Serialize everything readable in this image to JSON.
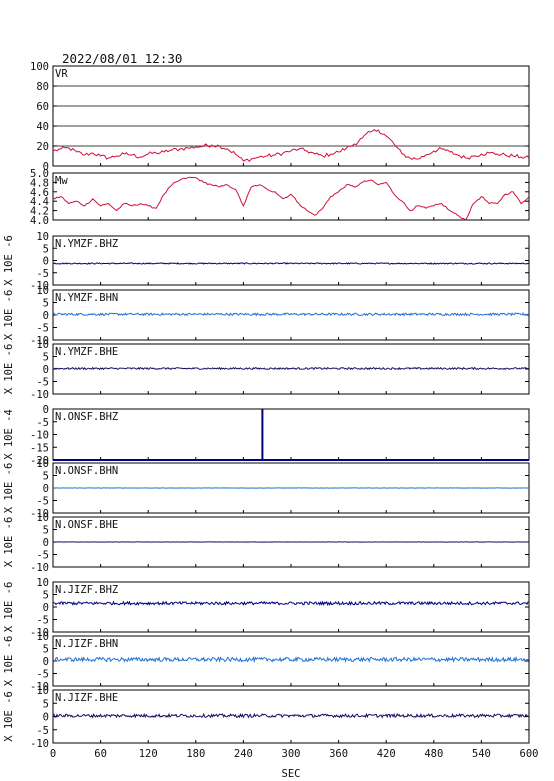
{
  "header": {
    "datetime": "2022/08/01 12:30"
  },
  "xaxis": {
    "label": "SEC",
    "min": 0,
    "max": 600,
    "ticks": [
      "0",
      "60",
      "120",
      "180",
      "240",
      "300",
      "360",
      "420",
      "480",
      "540",
      "600"
    ]
  },
  "colors": {
    "vr": "#d0103a",
    "mw": "#d0103a",
    "navy": "#000080",
    "lightblue": "#2070d0",
    "darknavy": "#101060",
    "frame": "#000000"
  },
  "ylabel_seismic_6": "X 10E -6",
  "ylabel_seismic_4": "X 10E -4",
  "chart_data": [
    {
      "type": "line",
      "label": "VR",
      "ylim": [
        0,
        100
      ],
      "color_key": "vr",
      "grid": true,
      "ticks": [
        "100",
        "80",
        "60",
        "40",
        "20",
        "0"
      ],
      "x": [
        0,
        10,
        20,
        30,
        40,
        50,
        60,
        70,
        80,
        90,
        100,
        110,
        120,
        130,
        140,
        150,
        160,
        170,
        180,
        190,
        200,
        210,
        220,
        230,
        240,
        250,
        260,
        270,
        280,
        290,
        300,
        310,
        320,
        330,
        340,
        350,
        360,
        370,
        380,
        390,
        400,
        410,
        420,
        430,
        440,
        450,
        460,
        470,
        480,
        490,
        500,
        510,
        520,
        530,
        540,
        550,
        560,
        570,
        580,
        590,
        600
      ],
      "y": [
        15,
        17,
        18,
        14,
        11,
        13,
        10,
        8,
        10,
        12,
        11,
        9,
        12,
        13,
        14,
        16,
        17,
        18,
        19,
        20,
        21,
        20,
        17,
        12,
        5,
        7,
        9,
        10,
        11,
        13,
        15,
        17,
        15,
        12,
        10,
        12,
        14,
        18,
        22,
        28,
        34,
        36,
        30,
        22,
        12,
        8,
        7,
        11,
        15,
        17,
        14,
        11,
        8,
        10,
        12,
        13,
        12,
        11,
        10,
        9,
        8
      ]
    },
    {
      "type": "line",
      "label": "Mw",
      "ylim": [
        4.0,
        5.0
      ],
      "color_key": "mw",
      "grid": false,
      "ticks": [
        "5.0",
        "4.8",
        "4.6",
        "4.4",
        "4.2",
        "4.0"
      ],
      "x": [
        0,
        10,
        20,
        30,
        40,
        50,
        60,
        70,
        80,
        90,
        100,
        110,
        120,
        130,
        140,
        150,
        160,
        170,
        180,
        190,
        200,
        210,
        220,
        230,
        240,
        250,
        260,
        270,
        280,
        290,
        300,
        310,
        320,
        330,
        340,
        350,
        360,
        370,
        380,
        390,
        400,
        410,
        420,
        430,
        440,
        450,
        460,
        470,
        480,
        490,
        500,
        510,
        520,
        530,
        540,
        550,
        560,
        570,
        580,
        590,
        600
      ],
      "y": [
        4.45,
        4.5,
        4.35,
        4.4,
        4.3,
        4.45,
        4.3,
        4.35,
        4.2,
        4.35,
        4.3,
        4.35,
        4.3,
        4.25,
        4.55,
        4.75,
        4.85,
        4.9,
        4.9,
        4.8,
        4.75,
        4.7,
        4.75,
        4.65,
        4.3,
        4.7,
        4.75,
        4.65,
        4.6,
        4.45,
        4.55,
        4.35,
        4.2,
        4.1,
        4.25,
        4.5,
        4.6,
        4.75,
        4.7,
        4.8,
        4.85,
        4.75,
        4.8,
        4.55,
        4.4,
        4.2,
        4.3,
        4.25,
        4.3,
        4.35,
        4.2,
        4.1,
        4.0,
        4.35,
        4.5,
        4.35,
        4.35,
        4.55,
        4.6,
        4.35,
        4.5
      ]
    },
    {
      "type": "line",
      "label": "N.YMZF.BHZ",
      "ylim": [
        -10,
        10
      ],
      "color_key": "navy",
      "ticks": [
        "10",
        "5",
        "0",
        "-5",
        "-10"
      ],
      "ylabel_key": "ylabel_seismic_6",
      "x": [
        0,
        600
      ],
      "y": [
        -1.2,
        -1.2
      ],
      "noise": 0.25
    },
    {
      "type": "line",
      "label": "N.YMZF.BHN",
      "ylim": [
        -10,
        10
      ],
      "color_key": "lightblue",
      "ticks": [
        "10",
        "5",
        "0",
        "-5",
        "-10"
      ],
      "ylabel_key": "ylabel_seismic_6",
      "x": [
        0,
        600
      ],
      "y": [
        0.3,
        0.3
      ],
      "noise": 0.45
    },
    {
      "type": "line",
      "label": "N.YMZF.BHE",
      "ylim": [
        -10,
        10
      ],
      "color_key": "darknavy",
      "ticks": [
        "10",
        "5",
        "0",
        "-5",
        "-10"
      ],
      "ylabel_key": "ylabel_seismic_6",
      "x": [
        0,
        600
      ],
      "y": [
        0.2,
        0.2
      ],
      "noise": 0.35
    },
    {
      "type": "line",
      "label": "N.ONSF.BHZ",
      "ylim": [
        -20,
        0
      ],
      "color_key": "navy",
      "ticks": [
        "0",
        "-5",
        "-10",
        "-15",
        "-20"
      ],
      "ylabel_key": "ylabel_seismic_4",
      "x": [
        0,
        264,
        264,
        264,
        600
      ],
      "y": [
        -20,
        -20,
        0,
        -20,
        -20
      ],
      "noise": 0.0
    },
    {
      "type": "line",
      "label": "N.ONSF.BHN",
      "ylim": [
        -10,
        10
      ],
      "color_key": "lightblue",
      "ticks": [
        "10",
        "5",
        "0",
        "-5",
        "-10"
      ],
      "ylabel_key": "ylabel_seismic_6",
      "x": [
        0,
        600
      ],
      "y": [
        0,
        0
      ],
      "noise": 0.05
    },
    {
      "type": "line",
      "label": "N.ONSF.BHE",
      "ylim": [
        -10,
        10
      ],
      "color_key": "darknavy",
      "ticks": [
        "10",
        "5",
        "0",
        "-5",
        "-10"
      ],
      "ylabel_key": "ylabel_seismic_6",
      "x": [
        0,
        600
      ],
      "y": [
        0,
        0
      ],
      "noise": 0.05
    },
    {
      "type": "line",
      "label": "N.JIZF.BHZ",
      "ylim": [
        -10,
        10
      ],
      "color_key": "navy",
      "ticks": [
        "10",
        "5",
        "0",
        "-5",
        "-10"
      ],
      "ylabel_key": "ylabel_seismic_6",
      "x": [
        0,
        600
      ],
      "y": [
        1.5,
        1.5
      ],
      "noise": 0.6
    },
    {
      "type": "line",
      "label": "N.JIZF.BHN",
      "ylim": [
        -10,
        10
      ],
      "color_key": "lightblue",
      "ticks": [
        "10",
        "5",
        "0",
        "-5",
        "-10"
      ],
      "ylabel_key": "ylabel_seismic_6",
      "x": [
        0,
        600
      ],
      "y": [
        0.6,
        0.6
      ],
      "noise": 0.8
    },
    {
      "type": "line",
      "label": "N.JIZF.BHE",
      "ylim": [
        -10,
        10
      ],
      "color_key": "darknavy",
      "ticks": [
        "10",
        "5",
        "0",
        "-5",
        "-10"
      ],
      "ylabel_key": "ylabel_seismic_6",
      "x": [
        0,
        600
      ],
      "y": [
        0.3,
        0.3
      ],
      "noise": 0.6
    }
  ]
}
